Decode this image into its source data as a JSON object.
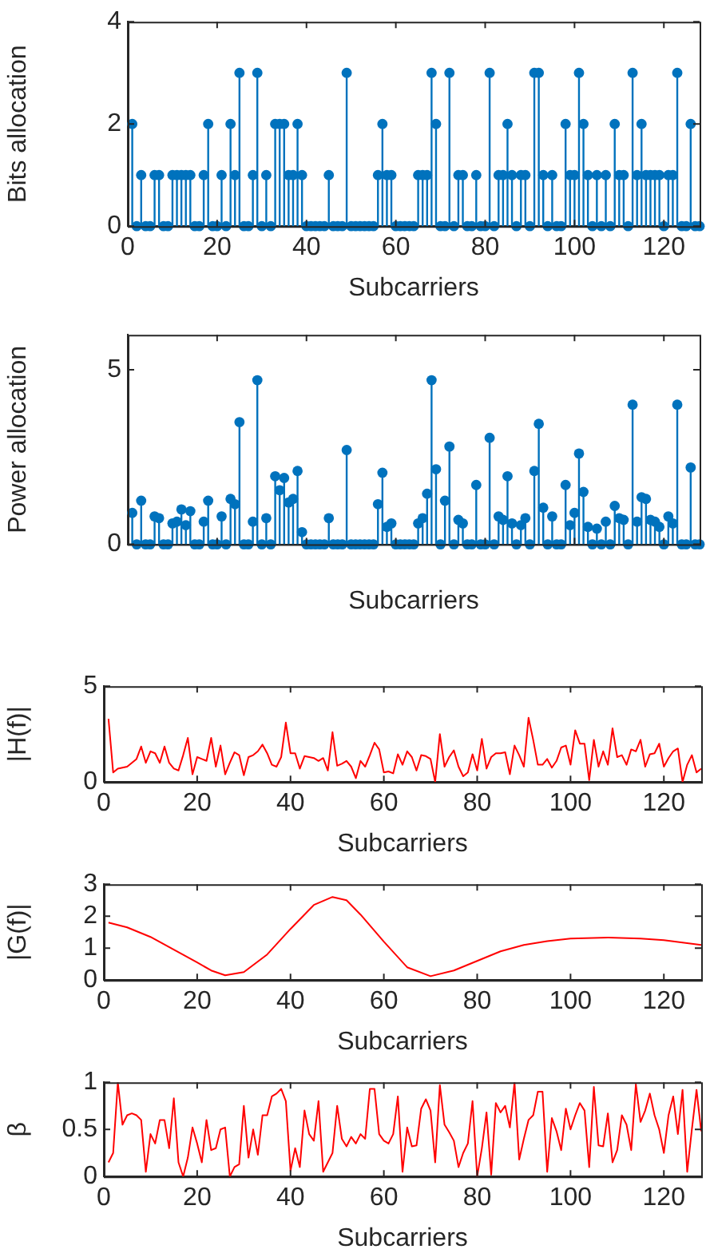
{
  "chart_data": [
    {
      "type": "lollipop",
      "xlabel": "Subcarriers",
      "ylabel": "Bits allocation",
      "color": "#0072bd",
      "marker": "circle",
      "xlim": [
        0,
        128
      ],
      "xticks": [
        0,
        20,
        40,
        60,
        80,
        100,
        120
      ],
      "ylim": [
        0,
        4
      ],
      "yticks": [
        0,
        2,
        4
      ],
      "x": [
        1,
        2,
        3,
        4,
        5,
        6,
        7,
        8,
        9,
        10,
        11,
        12,
        13,
        14,
        15,
        16,
        17,
        18,
        19,
        20,
        21,
        22,
        23,
        24,
        25,
        26,
        27,
        28,
        29,
        30,
        31,
        32,
        33,
        34,
        35,
        36,
        37,
        38,
        39,
        40,
        41,
        42,
        43,
        44,
        45,
        46,
        47,
        48,
        49,
        50,
        51,
        52,
        53,
        54,
        55,
        56,
        57,
        58,
        59,
        60,
        61,
        62,
        63,
        64,
        65,
        66,
        67,
        68,
        69,
        70,
        71,
        72,
        73,
        74,
        75,
        76,
        77,
        78,
        79,
        80,
        81,
        82,
        83,
        84,
        85,
        86,
        87,
        88,
        89,
        90,
        91,
        92,
        93,
        94,
        95,
        96,
        97,
        98,
        99,
        100,
        101,
        102,
        103,
        104,
        105,
        106,
        107,
        108,
        109,
        110,
        111,
        112,
        113,
        114,
        115,
        116,
        117,
        118,
        119,
        120,
        121,
        122,
        123,
        124,
        125,
        126,
        127,
        128
      ],
      "values": [
        2,
        0,
        1,
        0,
        0,
        1,
        1,
        0,
        0,
        1,
        1,
        1,
        1,
        1,
        0,
        0,
        1,
        2,
        0,
        0,
        1,
        0,
        2,
        1,
        3,
        0,
        0,
        1,
        3,
        0,
        1,
        0,
        2,
        2,
        2,
        1,
        1,
        2,
        1,
        0,
        0,
        0,
        0,
        0,
        1,
        0,
        0,
        0,
        3,
        0,
        0,
        0,
        0,
        0,
        0,
        1,
        2,
        1,
        1,
        0,
        0,
        0,
        0,
        0,
        1,
        1,
        1,
        3,
        2,
        0,
        0,
        3,
        0,
        1,
        1,
        0,
        0,
        1,
        0,
        0,
        3,
        0,
        1,
        1,
        2,
        1,
        0,
        1,
        1,
        0,
        3,
        3,
        1,
        0,
        1,
        0,
        0,
        2,
        1,
        1,
        3,
        2,
        1,
        0,
        1,
        0,
        1,
        0,
        2,
        1,
        1,
        0,
        3,
        1,
        2,
        1,
        1,
        1,
        1,
        0,
        1,
        1,
        3,
        0,
        0,
        2,
        0,
        0
      ]
    },
    {
      "type": "lollipop",
      "xlabel": "Subcarriers",
      "ylabel": "Power allocation",
      "color": "#0072bd",
      "marker": "circle",
      "xlim": [
        0,
        128
      ],
      "xticks": [
        0,
        20,
        40,
        60,
        80,
        100,
        120
      ],
      "tick_labels": "y",
      "ylim": [
        0,
        6
      ],
      "yticks": [
        0,
        5
      ],
      "x": [
        1,
        2,
        3,
        4,
        5,
        6,
        7,
        8,
        9,
        10,
        11,
        12,
        13,
        14,
        15,
        16,
        17,
        18,
        19,
        20,
        21,
        22,
        23,
        24,
        25,
        26,
        27,
        28,
        29,
        30,
        31,
        32,
        33,
        34,
        35,
        36,
        37,
        38,
        39,
        40,
        41,
        42,
        43,
        44,
        45,
        46,
        47,
        48,
        49,
        50,
        51,
        52,
        53,
        54,
        55,
        56,
        57,
        58,
        59,
        60,
        61,
        62,
        63,
        64,
        65,
        66,
        67,
        68,
        69,
        70,
        71,
        72,
        73,
        74,
        75,
        76,
        77,
        78,
        79,
        80,
        81,
        82,
        83,
        84,
        85,
        86,
        87,
        88,
        89,
        90,
        91,
        92,
        93,
        94,
        95,
        96,
        97,
        98,
        99,
        100,
        101,
        102,
        103,
        104,
        105,
        106,
        107,
        108,
        109,
        110,
        111,
        112,
        113,
        114,
        115,
        116,
        117,
        118,
        119,
        120,
        121,
        122,
        123,
        124,
        125,
        126,
        127,
        128
      ],
      "values": [
        0.9,
        0,
        1.25,
        0,
        0,
        0.8,
        0.75,
        0,
        0,
        0.6,
        0.65,
        1.0,
        0.55,
        0.95,
        0,
        0,
        0.65,
        1.25,
        0,
        0,
        0.8,
        0,
        1.3,
        1.15,
        3.5,
        0,
        0,
        0.65,
        4.7,
        0,
        0.75,
        0,
        1.95,
        1.55,
        1.9,
        1.2,
        1.3,
        2.1,
        0.35,
        0,
        0,
        0,
        0,
        0,
        0.75,
        0,
        0,
        0,
        2.7,
        0,
        0,
        0,
        0,
        0,
        0,
        1.15,
        2.05,
        0.5,
        0.6,
        0,
        0,
        0,
        0,
        0,
        0.6,
        0.75,
        1.45,
        4.7,
        2.15,
        0,
        1.25,
        2.8,
        0,
        0.7,
        0.6,
        0,
        0,
        1.7,
        0,
        0,
        3.05,
        0,
        0.8,
        0.7,
        1.95,
        0.6,
        0,
        0.55,
        0.75,
        0,
        2.1,
        3.45,
        1.05,
        0,
        0.8,
        0,
        0,
        1.7,
        0.55,
        0.9,
        2.6,
        1.5,
        0.5,
        0,
        0.45,
        0,
        0.65,
        0,
        1.1,
        0.75,
        0.7,
        0,
        4.0,
        0.65,
        1.35,
        1.3,
        0.7,
        0.65,
        0.5,
        0,
        0.8,
        0.6,
        4.0,
        0,
        0,
        2.2,
        0,
        0
      ]
    },
    {
      "type": "line",
      "xlabel": "Subcarriers",
      "ylabel": "|H(f)|",
      "color": "#ff0000",
      "xlim": [
        0,
        128
      ],
      "xticks": [
        0,
        20,
        40,
        60,
        80,
        100,
        120
      ],
      "ylim": [
        0,
        5
      ],
      "yticks": [
        0,
        5
      ],
      "x": [
        1,
        2,
        3,
        4,
        5,
        6,
        7,
        8,
        9,
        10,
        11,
        12,
        13,
        14,
        15,
        16,
        17,
        18,
        19,
        20,
        21,
        22,
        23,
        24,
        25,
        26,
        27,
        28,
        29,
        30,
        31,
        32,
        33,
        34,
        35,
        36,
        37,
        38,
        39,
        40,
        41,
        42,
        43,
        44,
        45,
        46,
        47,
        48,
        49,
        50,
        51,
        52,
        53,
        54,
        55,
        56,
        57,
        58,
        59,
        60,
        61,
        62,
        63,
        64,
        65,
        66,
        67,
        68,
        69,
        70,
        71,
        72,
        73,
        74,
        75,
        76,
        77,
        78,
        79,
        80,
        81,
        82,
        83,
        84,
        85,
        86,
        87,
        88,
        89,
        90,
        91,
        92,
        93,
        94,
        95,
        96,
        97,
        98,
        99,
        100,
        101,
        102,
        103,
        104,
        105,
        106,
        107,
        108,
        109,
        110,
        111,
        112,
        113,
        114,
        115,
        116,
        117,
        118,
        119,
        120,
        121,
        122,
        123,
        124,
        125,
        126,
        127,
        128
      ],
      "values": [
        3.3,
        0.5,
        0.7,
        0.75,
        0.8,
        1.0,
        1.2,
        1.85,
        1.0,
        1.6,
        1.5,
        1.0,
        1.85,
        1.0,
        0.7,
        0.6,
        1.4,
        2.3,
        0.4,
        1.3,
        1.2,
        1.1,
        2.3,
        0.8,
        1.9,
        0.4,
        1.0,
        1.55,
        1.4,
        0.35,
        1.3,
        1.4,
        1.6,
        1.95,
        1.5,
        0.9,
        0.8,
        1.3,
        3.1,
        1.5,
        1.5,
        0.7,
        1.35,
        1.3,
        1.25,
        1.1,
        1.25,
        0.6,
        2.6,
        0.85,
        0.95,
        1.1,
        0.8,
        0.2,
        1.1,
        0.8,
        1.4,
        2.05,
        1.7,
        0.5,
        0.55,
        0.45,
        1.45,
        0.9,
        1.6,
        1.3,
        0.6,
        1.4,
        1.35,
        1.2,
        0.0,
        2.5,
        0.8,
        1.3,
        1.65,
        0.8,
        0.3,
        0.5,
        1.45,
        0.6,
        2.25,
        0.7,
        1.3,
        1.5,
        1.5,
        1.55,
        0.4,
        1.9,
        1.4,
        0.8,
        3.35,
        2.2,
        0.9,
        0.9,
        1.2,
        0.75,
        1.1,
        1.8,
        1.9,
        0.9,
        2.7,
        2.0,
        2.0,
        0.1,
        2.2,
        0.8,
        1.6,
        0.9,
        2.8,
        1.3,
        1.4,
        0.9,
        1.7,
        1.6,
        2.2,
        0.8,
        1.45,
        1.5,
        2.0,
        0.8,
        1.25,
        1.6,
        1.75,
        0.0,
        0.9,
        1.4,
        0.5,
        0.7
      ]
    },
    {
      "type": "line",
      "xlabel": "Subcarriers",
      "ylabel": "|G(f)|",
      "color": "#ff0000",
      "xlim": [
        0,
        128
      ],
      "xticks": [
        0,
        20,
        40,
        60,
        80,
        100,
        120
      ],
      "ylim": [
        0,
        3
      ],
      "yticks": [
        0,
        1,
        2,
        3
      ],
      "x": [
        1,
        5,
        10,
        15,
        20,
        23,
        26,
        30,
        35,
        40,
        45,
        49,
        52,
        55,
        60,
        65,
        70,
        75,
        80,
        85,
        90,
        95,
        100,
        108,
        115,
        120,
        128
      ],
      "values": [
        1.8,
        1.65,
        1.35,
        0.95,
        0.55,
        0.3,
        0.15,
        0.25,
        0.8,
        1.6,
        2.35,
        2.6,
        2.5,
        2.05,
        1.2,
        0.4,
        0.12,
        0.3,
        0.6,
        0.9,
        1.1,
        1.22,
        1.3,
        1.33,
        1.3,
        1.25,
        1.1
      ]
    },
    {
      "type": "line",
      "xlabel": "Subcarriers",
      "ylabel": "β",
      "color": "#ff0000",
      "xlim": [
        0,
        128
      ],
      "xticks": [
        0,
        20,
        40,
        60,
        80,
        100,
        120
      ],
      "ylim": [
        0,
        1
      ],
      "yticks": [
        0,
        0.5,
        1
      ],
      "x": [
        1,
        2,
        3,
        4,
        5,
        6,
        7,
        8,
        9,
        10,
        11,
        12,
        13,
        14,
        15,
        16,
        17,
        18,
        19,
        20,
        21,
        22,
        23,
        24,
        25,
        26,
        27,
        28,
        29,
        30,
        31,
        32,
        33,
        34,
        35,
        36,
        37,
        38,
        39,
        40,
        41,
        42,
        43,
        44,
        45,
        46,
        47,
        48,
        49,
        50,
        51,
        52,
        53,
        54,
        55,
        56,
        57,
        58,
        59,
        60,
        61,
        62,
        63,
        64,
        65,
        66,
        67,
        68,
        69,
        70,
        71,
        72,
        73,
        74,
        75,
        76,
        77,
        78,
        79,
        80,
        81,
        82,
        83,
        84,
        85,
        86,
        87,
        88,
        89,
        90,
        91,
        92,
        93,
        94,
        95,
        96,
        97,
        98,
        99,
        100,
        101,
        102,
        103,
        104,
        105,
        106,
        107,
        108,
        109,
        110,
        111,
        112,
        113,
        114,
        115,
        116,
        117,
        118,
        119,
        120,
        121,
        122,
        123,
        124,
        125,
        126,
        127,
        128
      ],
      "values": [
        0.15,
        0.25,
        1.0,
        0.55,
        0.65,
        0.67,
        0.65,
        0.6,
        0.05,
        0.45,
        0.35,
        0.6,
        0.6,
        0.3,
        0.83,
        0.15,
        0.0,
        0.2,
        0.52,
        0.35,
        0.15,
        0.6,
        0.28,
        0.3,
        0.5,
        0.52,
        0.0,
        0.1,
        0.13,
        0.75,
        0.2,
        0.5,
        0.23,
        0.65,
        0.65,
        0.85,
        0.88,
        0.93,
        0.8,
        0.06,
        0.3,
        0.1,
        0.7,
        0.45,
        0.38,
        0.8,
        0.05,
        0.15,
        0.25,
        0.75,
        0.4,
        0.32,
        0.42,
        0.35,
        0.45,
        0.4,
        0.93,
        0.93,
        0.45,
        0.38,
        0.35,
        0.45,
        0.85,
        0.05,
        0.52,
        0.32,
        0.33,
        0.72,
        0.82,
        0.7,
        0.15,
        0.97,
        0.55,
        0.47,
        0.38,
        0.1,
        0.25,
        0.35,
        0.8,
        0.0,
        0.3,
        0.68,
        0.02,
        0.78,
        0.68,
        0.75,
        0.52,
        1.0,
        0.18,
        0.4,
        0.6,
        0.65,
        0.9,
        0.9,
        0.05,
        0.62,
        0.48,
        0.28,
        0.72,
        0.5,
        0.65,
        0.78,
        0.7,
        0.1,
        0.95,
        0.33,
        0.32,
        0.67,
        0.15,
        0.28,
        0.65,
        0.55,
        0.28,
        0.98,
        0.58,
        0.7,
        0.88,
        0.65,
        0.5,
        0.25,
        0.65,
        0.85,
        0.45,
        0.92,
        0.05,
        0.5,
        0.92,
        0.48
      ]
    }
  ]
}
